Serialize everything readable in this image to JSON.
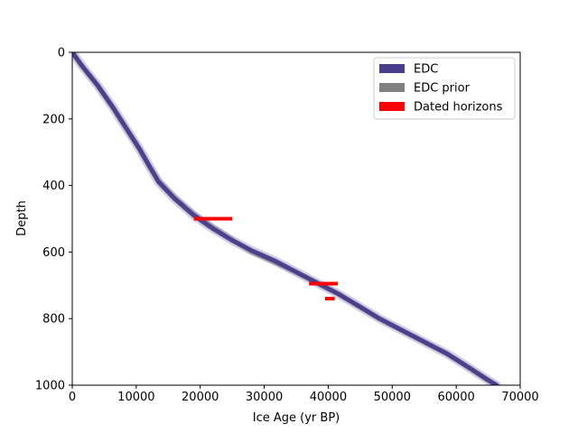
{
  "chart_data": {
    "type": "line",
    "title": "",
    "xlabel": "Ice Age (yr BP)",
    "ylabel": "Depth",
    "xlim": [
      0,
      70000
    ],
    "ylim": [
      0,
      1000
    ],
    "y_inverted": true,
    "xticks": [
      0,
      10000,
      20000,
      30000,
      40000,
      50000,
      60000,
      70000
    ],
    "yticks": [
      0,
      200,
      400,
      600,
      800,
      1000
    ],
    "grid": false,
    "legend_placement": "top-right",
    "legend": [
      {
        "label": "EDC",
        "color": "#483d8b"
      },
      {
        "label": "EDC prior",
        "color": "#808080"
      },
      {
        "label": "Dated horizons",
        "color": "#ff0000"
      }
    ],
    "series": [
      {
        "name": "EDC",
        "color": "#483d8b",
        "points": [
          [
            0,
            0
          ],
          [
            1500,
            40
          ],
          [
            4000,
            100
          ],
          [
            6500,
            170
          ],
          [
            8500,
            230
          ],
          [
            10500,
            290
          ],
          [
            12000,
            340
          ],
          [
            13500,
            390
          ],
          [
            16000,
            440
          ],
          [
            19000,
            490
          ],
          [
            22000,
            530
          ],
          [
            25000,
            565
          ],
          [
            28000,
            595
          ],
          [
            31500,
            625
          ],
          [
            35000,
            660
          ],
          [
            38500,
            695
          ],
          [
            41500,
            725
          ],
          [
            45000,
            765
          ],
          [
            48000,
            800
          ],
          [
            51500,
            835
          ],
          [
            55000,
            870
          ],
          [
            58500,
            905
          ],
          [
            61000,
            935
          ],
          [
            63000,
            960
          ],
          [
            65000,
            985
          ],
          [
            66300,
            1000
          ]
        ]
      },
      {
        "name": "EDC prior",
        "color": "#808080",
        "points": [
          [
            0,
            0
          ],
          [
            1500,
            40
          ],
          [
            4000,
            100
          ],
          [
            6500,
            170
          ],
          [
            8500,
            230
          ],
          [
            10500,
            290
          ],
          [
            12000,
            340
          ],
          [
            13500,
            385
          ],
          [
            16000,
            435
          ],
          [
            19000,
            485
          ],
          [
            22000,
            525
          ],
          [
            25000,
            562
          ],
          [
            28000,
            600
          ],
          [
            31500,
            630
          ],
          [
            35000,
            662
          ],
          [
            38500,
            695
          ],
          [
            41500,
            725
          ],
          [
            45000,
            765
          ],
          [
            48000,
            800
          ],
          [
            51500,
            835
          ],
          [
            55000,
            870
          ],
          [
            58500,
            905
          ],
          [
            61000,
            935
          ],
          [
            63000,
            960
          ],
          [
            65000,
            985
          ],
          [
            66300,
            1000
          ]
        ]
      }
    ],
    "dated_horizons": [
      {
        "depth": 500,
        "age_min": 19000,
        "age_max": 25000
      },
      {
        "depth": 695,
        "age_min": 37000,
        "age_max": 41500
      },
      {
        "depth": 740,
        "age_min": 39500,
        "age_max": 41000
      }
    ]
  }
}
